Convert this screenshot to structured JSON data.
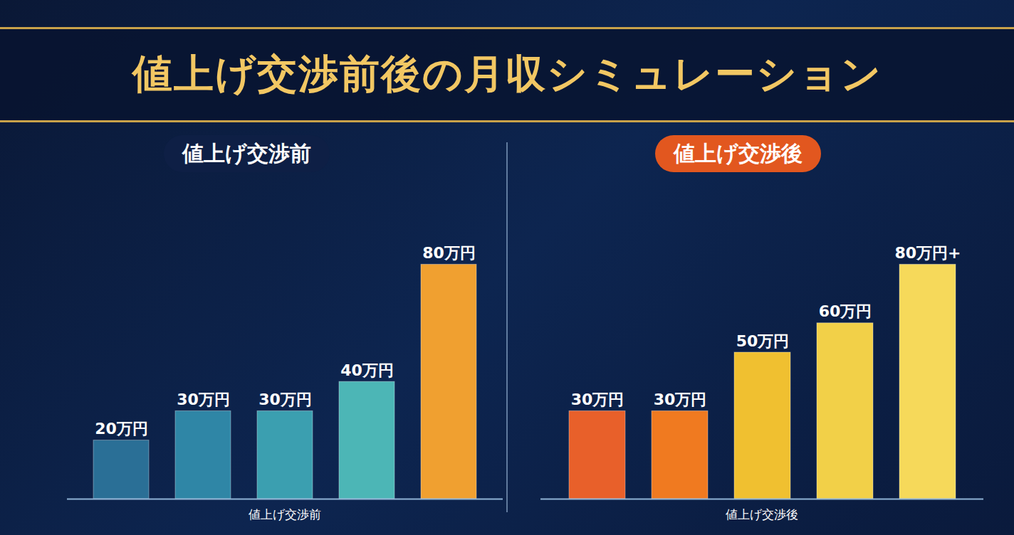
{
  "title": "値上げ交渉前後の月収シミュレーション",
  "chart_data": [
    {
      "type": "bar",
      "title": "値上げ交渉前",
      "xlabel": "値上げ交渉前",
      "categories": [
        null,
        null,
        null,
        null,
        null
      ],
      "values": [
        20,
        30,
        30,
        40,
        80
      ],
      "value_labels": [
        "20万円",
        "30万円",
        "30万円",
        "40万円",
        "80万円"
      ],
      "colors": [
        "#2a6f96",
        "#2f86a6",
        "#3b9fb0",
        "#4cb6b6",
        "#f0a030"
      ],
      "ylim": [
        0,
        100
      ],
      "data_labels": true,
      "tick_labels": false,
      "grid": false
    },
    {
      "type": "bar",
      "title": "値上げ交渉後",
      "xlabel": "値上げ交渉後",
      "categories": [
        null,
        null,
        null,
        null,
        null
      ],
      "values": [
        30,
        30,
        50,
        60,
        80
      ],
      "value_labels": [
        "30万円",
        "30万円",
        "50万円",
        "60万円",
        "80万円+"
      ],
      "colors": [
        "#e8602a",
        "#f07a20",
        "#f0c030",
        "#f2d048",
        "#f6d95a"
      ],
      "ylim": [
        0,
        100
      ],
      "data_labels": true,
      "tick_labels": false,
      "grid": false
    }
  ]
}
